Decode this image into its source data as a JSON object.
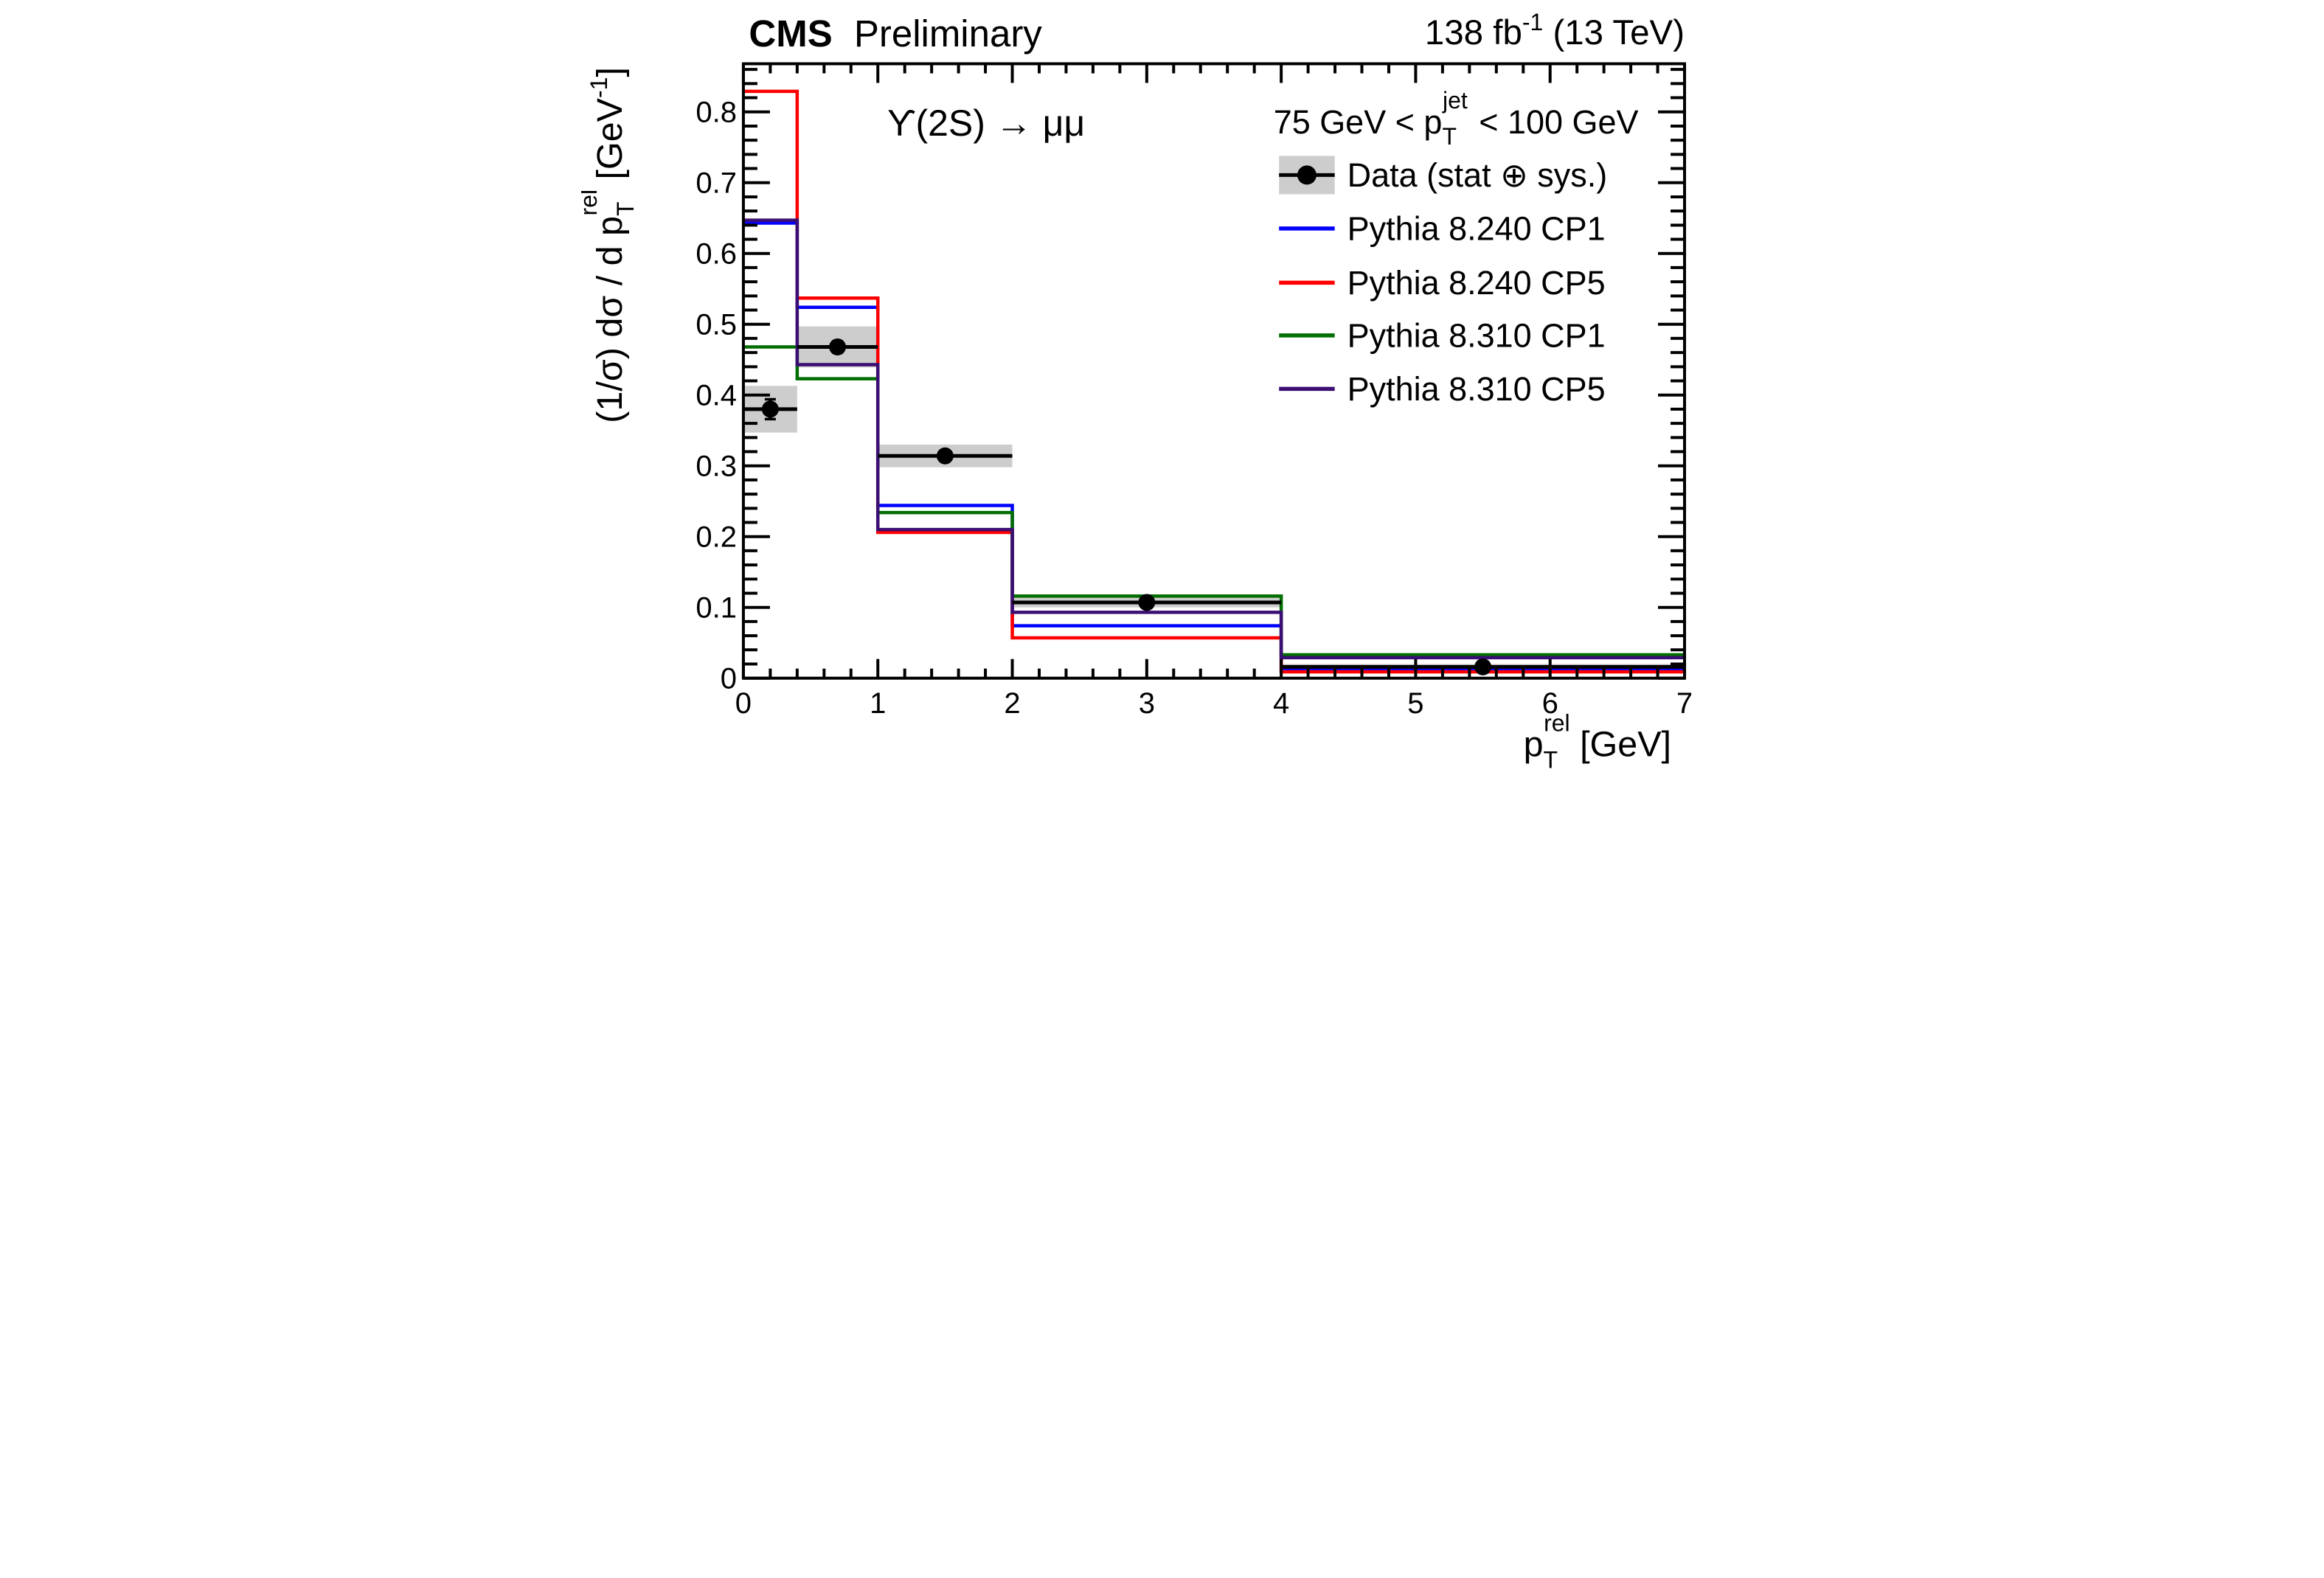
{
  "header": {
    "experiment": "CMS",
    "status": "Preliminary",
    "lumi_prefix": "138 fb",
    "lumi_sup": "-1",
    "lumi_suffix": " (13 TeV)"
  },
  "annotations": {
    "decay": "ϒ(2S) → μμ"
  },
  "legend": {
    "header": {
      "pre": "75 GeV < p",
      "sub": "T",
      "sup": "jet",
      "post": " < 100 GeV"
    },
    "items": [
      {
        "label": "Data (stat ⊕ sys.)",
        "type": "data",
        "color": "#000000"
      },
      {
        "label": "Pythia 8.240 CP1",
        "type": "line",
        "color": "#0000ff"
      },
      {
        "label": "Pythia 8.240 CP5",
        "type": "line",
        "color": "#ff0000"
      },
      {
        "label": "Pythia 8.310 CP1",
        "type": "line",
        "color": "#006e00"
      },
      {
        "label": "Pythia 8.310 CP5",
        "type": "line",
        "color": "#3a0e73"
      }
    ]
  },
  "axes": {
    "x": {
      "title_pre": "p",
      "title_sub": "T",
      "title_sup": "rel",
      "title_post": " [GeV]",
      "min": 0,
      "max": 7,
      "major_ticks": [
        0,
        1,
        2,
        3,
        4,
        5,
        6,
        7
      ],
      "tick_labels": [
        "0",
        "1",
        "2",
        "3",
        "4",
        "5",
        "6",
        "7"
      ],
      "minor_step": 0.2
    },
    "y": {
      "title_pre": "(1/σ) dσ / d p",
      "title_sub": "T",
      "title_sup": "rel",
      "title_mid": " [GeV",
      "title_sup2": "-1",
      "title_post": "]",
      "min": 0,
      "max": 0.868,
      "major_step": 0.1,
      "tick_labels": [
        "0",
        "0.1",
        "0.2",
        "0.3",
        "0.4",
        "0.5",
        "0.6",
        "0.7",
        "0.8"
      ],
      "minor_step": 0.02
    }
  },
  "chart_data": {
    "type": "bar",
    "subtype": "step-histogram-with-data-points",
    "bin_edges": [
      0,
      0.4,
      1.0,
      2.0,
      4.0,
      7.0
    ],
    "data_series": {
      "name": "Data (stat ⊕ sys.)",
      "x": [
        0.2,
        0.7,
        1.5,
        3.0,
        5.5
      ],
      "y": [
        0.38,
        0.468,
        0.314,
        0.107,
        0.016
      ],
      "total_unc": [
        0.033,
        0.029,
        0.016,
        0.007,
        0.004
      ],
      "stat_unc": [
        0.014,
        0.008,
        0.005,
        0.003,
        0.002
      ],
      "marker_color": "#000000",
      "band_color": "#cdcdcd"
    },
    "mc_series": [
      {
        "name": "Pythia 8.240 CP1",
        "color": "#0000ff",
        "values": [
          0.643,
          0.524,
          0.244,
          0.074,
          0.012
        ]
      },
      {
        "name": "Pythia 8.240 CP5",
        "color": "#ff0000",
        "values": [
          0.829,
          0.537,
          0.206,
          0.057,
          0.009
        ]
      },
      {
        "name": "Pythia 8.310 CP1",
        "color": "#006e00",
        "values": [
          0.468,
          0.423,
          0.234,
          0.116,
          0.033
        ]
      },
      {
        "name": "Pythia 8.310 CP5",
        "color": "#3a0e73",
        "values": [
          0.647,
          0.443,
          0.21,
          0.093,
          0.029
        ]
      }
    ],
    "xlim": [
      0,
      7
    ],
    "ylim": [
      0,
      0.868
    ],
    "grid": false,
    "legend_position": "top-right-inside"
  }
}
